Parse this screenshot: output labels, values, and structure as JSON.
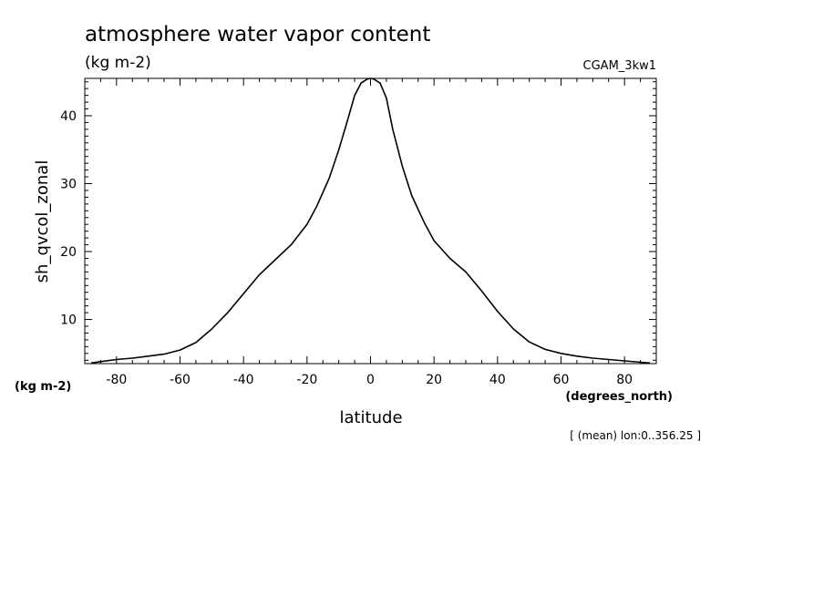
{
  "chart_data": {
    "type": "line",
    "title": "atmosphere water vapor content",
    "subtitle": "(kg m-2)",
    "run_label": "CGAM_3kw1",
    "xlabel": "latitude",
    "xunits": "(degrees_north)",
    "ylabel": "sh_qvcol_zonal",
    "yunits": "(kg m-2)",
    "footnote": "[ (mean) lon:0..356.25 ]",
    "xlim": [
      -90,
      90
    ],
    "ylim": [
      3.5,
      45.5
    ],
    "xticks": [
      -80,
      -60,
      -40,
      -20,
      0,
      20,
      40,
      60,
      80
    ],
    "xtick_labels": [
      "-80",
      "-60",
      "-40",
      "-20",
      "0",
      "20",
      "40",
      "60",
      "80"
    ],
    "yticks": [
      10,
      20,
      30,
      40
    ],
    "ytick_labels": [
      "10",
      "20",
      "30",
      "40"
    ],
    "grid": false,
    "line_color": "#000000",
    "series": [
      {
        "x": [
          -88,
          -85,
          -80,
          -75,
          -70,
          -65,
          -60,
          -55,
          -50,
          -45,
          -40,
          -35,
          -30,
          -25,
          -20,
          -17,
          -13,
          -10,
          -7,
          -5,
          -3,
          -1,
          0,
          1,
          3,
          5,
          7,
          10,
          13,
          17,
          20,
          25,
          30,
          35,
          40,
          45,
          50,
          55,
          60,
          65,
          70,
          75,
          80,
          85,
          88
        ],
        "y": [
          3.6,
          3.8,
          4.1,
          4.3,
          4.6,
          4.9,
          5.5,
          6.6,
          8.6,
          11.0,
          13.8,
          16.6,
          18.8,
          21.0,
          24.0,
          26.6,
          30.8,
          35.0,
          39.7,
          43.0,
          44.8,
          45.4,
          45.5,
          45.4,
          44.8,
          42.6,
          38.0,
          32.6,
          28.2,
          24.2,
          21.6,
          19.0,
          17.0,
          14.2,
          11.2,
          8.6,
          6.7,
          5.6,
          5.0,
          4.6,
          4.3,
          4.1,
          3.9,
          3.7,
          3.6
        ]
      }
    ]
  }
}
